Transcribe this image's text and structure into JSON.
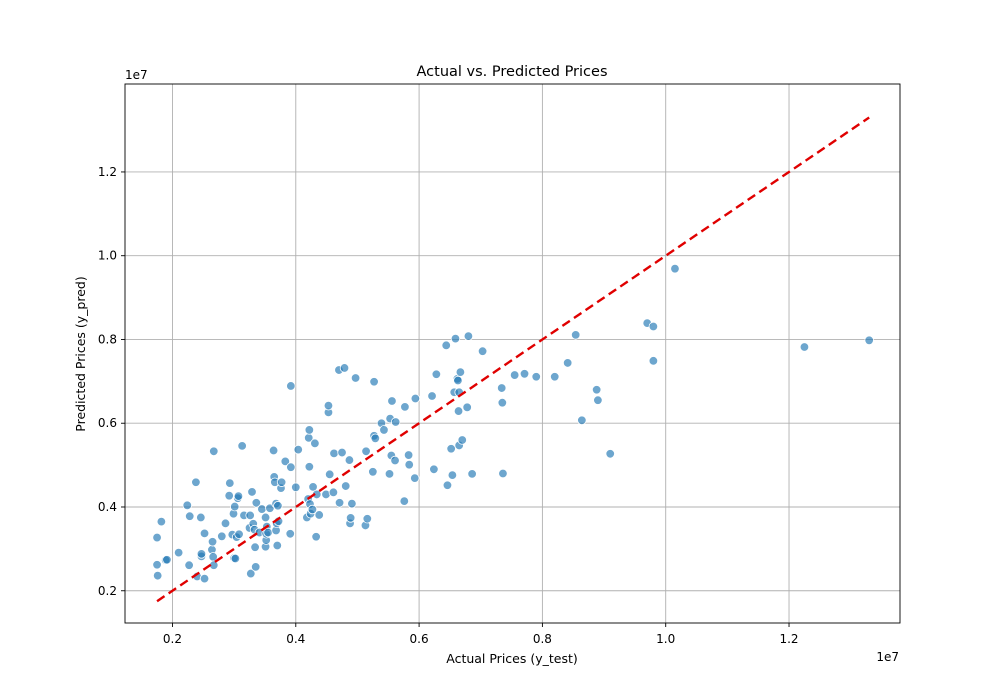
{
  "chart_data": {
    "type": "scatter",
    "title": "Actual vs. Predicted Prices",
    "xlabel": "Actual Prices (y_test)",
    "ylabel": "Predicted Prices (y_pred)",
    "x_offset_label": "1e7",
    "y_offset_label": "1e7",
    "xlim": [
      1.23,
      13.8
    ],
    "ylim": [
      1.23,
      14.1
    ],
    "x_ticks": [
      2,
      4,
      6,
      8,
      10,
      12
    ],
    "x_tick_labels": [
      "0.2",
      "0.4",
      "0.6",
      "0.8",
      "1.0",
      "1.2"
    ],
    "y_ticks": [
      2,
      4,
      6,
      8,
      10,
      12
    ],
    "y_tick_labels": [
      "0.2",
      "0.4",
      "0.6",
      "0.8",
      "1.0",
      "1.2"
    ],
    "grid": true,
    "point_color": "#1f77b4",
    "reference_line": {
      "x": [
        1.75,
        13.3
      ],
      "y": [
        1.75,
        13.3
      ],
      "color": "#e00000",
      "style": "dashed"
    },
    "points": [
      {
        "x": 1.75,
        "y": 3.27
      },
      {
        "x": 1.75,
        "y": 2.62
      },
      {
        "x": 1.76,
        "y": 2.36
      },
      {
        "x": 1.82,
        "y": 3.65
      },
      {
        "x": 1.89,
        "y": 2.73
      },
      {
        "x": 1.91,
        "y": 2.74
      },
      {
        "x": 2.1,
        "y": 2.91
      },
      {
        "x": 2.24,
        "y": 4.04
      },
      {
        "x": 2.27,
        "y": 2.61
      },
      {
        "x": 2.28,
        "y": 3.78
      },
      {
        "x": 2.38,
        "y": 4.59
      },
      {
        "x": 2.4,
        "y": 2.34
      },
      {
        "x": 2.46,
        "y": 3.75
      },
      {
        "x": 2.47,
        "y": 2.82
      },
      {
        "x": 2.47,
        "y": 2.88
      },
      {
        "x": 2.52,
        "y": 3.37
      },
      {
        "x": 2.52,
        "y": 2.29
      },
      {
        "x": 2.64,
        "y": 2.98
      },
      {
        "x": 2.65,
        "y": 3.17
      },
      {
        "x": 2.66,
        "y": 2.81
      },
      {
        "x": 2.67,
        "y": 2.61
      },
      {
        "x": 2.67,
        "y": 5.33
      },
      {
        "x": 2.8,
        "y": 3.3
      },
      {
        "x": 2.86,
        "y": 3.61
      },
      {
        "x": 2.92,
        "y": 4.27
      },
      {
        "x": 2.93,
        "y": 4.57
      },
      {
        "x": 2.97,
        "y": 3.34
      },
      {
        "x": 2.99,
        "y": 3.84
      },
      {
        "x": 3.0,
        "y": 2.78
      },
      {
        "x": 3.01,
        "y": 4.01
      },
      {
        "x": 3.02,
        "y": 2.77
      },
      {
        "x": 3.04,
        "y": 3.28
      },
      {
        "x": 3.06,
        "y": 4.21
      },
      {
        "x": 3.07,
        "y": 4.26
      },
      {
        "x": 3.08,
        "y": 3.35
      },
      {
        "x": 3.13,
        "y": 5.46
      },
      {
        "x": 3.16,
        "y": 3.8
      },
      {
        "x": 3.25,
        "y": 3.5
      },
      {
        "x": 3.26,
        "y": 3.8
      },
      {
        "x": 3.27,
        "y": 2.41
      },
      {
        "x": 3.29,
        "y": 4.36
      },
      {
        "x": 3.31,
        "y": 3.6
      },
      {
        "x": 3.33,
        "y": 3.46
      },
      {
        "x": 3.34,
        "y": 3.04
      },
      {
        "x": 3.35,
        "y": 2.57
      },
      {
        "x": 3.36,
        "y": 4.1
      },
      {
        "x": 3.41,
        "y": 3.39
      },
      {
        "x": 3.45,
        "y": 3.95
      },
      {
        "x": 3.51,
        "y": 3.75
      },
      {
        "x": 3.51,
        "y": 3.05
      },
      {
        "x": 3.52,
        "y": 3.21
      },
      {
        "x": 3.52,
        "y": 3.36
      },
      {
        "x": 3.53,
        "y": 3.53
      },
      {
        "x": 3.55,
        "y": 3.39
      },
      {
        "x": 3.58,
        "y": 3.97
      },
      {
        "x": 3.64,
        "y": 5.35
      },
      {
        "x": 3.65,
        "y": 4.72
      },
      {
        "x": 3.66,
        "y": 4.59
      },
      {
        "x": 3.68,
        "y": 3.44
      },
      {
        "x": 3.68,
        "y": 4.08
      },
      {
        "x": 3.69,
        "y": 3.61
      },
      {
        "x": 3.7,
        "y": 3.08
      },
      {
        "x": 3.71,
        "y": 4.03
      },
      {
        "x": 3.72,
        "y": 3.66
      },
      {
        "x": 3.76,
        "y": 4.45
      },
      {
        "x": 3.77,
        "y": 4.59
      },
      {
        "x": 3.83,
        "y": 5.09
      },
      {
        "x": 3.91,
        "y": 3.36
      },
      {
        "x": 3.92,
        "y": 4.95
      },
      {
        "x": 3.92,
        "y": 6.89
      },
      {
        "x": 4.0,
        "y": 4.47
      },
      {
        "x": 4.04,
        "y": 5.37
      },
      {
        "x": 4.18,
        "y": 3.75
      },
      {
        "x": 4.2,
        "y": 4.19
      },
      {
        "x": 4.21,
        "y": 5.65
      },
      {
        "x": 4.22,
        "y": 5.84
      },
      {
        "x": 4.22,
        "y": 4.96
      },
      {
        "x": 4.23,
        "y": 4.07
      },
      {
        "x": 4.24,
        "y": 3.84
      },
      {
        "x": 4.27,
        "y": 3.94
      },
      {
        "x": 4.28,
        "y": 4.48
      },
      {
        "x": 4.31,
        "y": 5.52
      },
      {
        "x": 4.33,
        "y": 3.29
      },
      {
        "x": 4.34,
        "y": 4.3
      },
      {
        "x": 4.38,
        "y": 3.81
      },
      {
        "x": 4.49,
        "y": 4.3
      },
      {
        "x": 4.53,
        "y": 6.26
      },
      {
        "x": 4.53,
        "y": 6.42
      },
      {
        "x": 4.55,
        "y": 4.78
      },
      {
        "x": 4.61,
        "y": 4.35
      },
      {
        "x": 4.62,
        "y": 5.28
      },
      {
        "x": 4.7,
        "y": 7.27
      },
      {
        "x": 4.71,
        "y": 4.1
      },
      {
        "x": 4.75,
        "y": 5.3
      },
      {
        "x": 4.79,
        "y": 7.32
      },
      {
        "x": 4.81,
        "y": 4.5
      },
      {
        "x": 4.87,
        "y": 5.12
      },
      {
        "x": 4.88,
        "y": 3.61
      },
      {
        "x": 4.89,
        "y": 3.74
      },
      {
        "x": 4.91,
        "y": 4.08
      },
      {
        "x": 4.97,
        "y": 7.08
      },
      {
        "x": 5.13,
        "y": 3.56
      },
      {
        "x": 5.14,
        "y": 5.33
      },
      {
        "x": 5.16,
        "y": 3.72
      },
      {
        "x": 5.25,
        "y": 4.84
      },
      {
        "x": 5.27,
        "y": 5.7
      },
      {
        "x": 5.27,
        "y": 6.99
      },
      {
        "x": 5.29,
        "y": 5.64
      },
      {
        "x": 5.39,
        "y": 6.0
      },
      {
        "x": 5.43,
        "y": 5.84
      },
      {
        "x": 5.52,
        "y": 4.79
      },
      {
        "x": 5.53,
        "y": 6.11
      },
      {
        "x": 5.55,
        "y": 5.23
      },
      {
        "x": 5.56,
        "y": 6.53
      },
      {
        "x": 5.61,
        "y": 5.11
      },
      {
        "x": 5.62,
        "y": 6.03
      },
      {
        "x": 5.76,
        "y": 4.14
      },
      {
        "x": 5.77,
        "y": 6.39
      },
      {
        "x": 5.83,
        "y": 5.24
      },
      {
        "x": 5.84,
        "y": 5.01
      },
      {
        "x": 5.93,
        "y": 4.69
      },
      {
        "x": 5.94,
        "y": 6.59
      },
      {
        "x": 6.21,
        "y": 6.65
      },
      {
        "x": 6.24,
        "y": 4.9
      },
      {
        "x": 6.28,
        "y": 7.17
      },
      {
        "x": 6.44,
        "y": 7.86
      },
      {
        "x": 6.46,
        "y": 4.52
      },
      {
        "x": 6.52,
        "y": 5.39
      },
      {
        "x": 6.54,
        "y": 4.76
      },
      {
        "x": 6.57,
        "y": 6.74
      },
      {
        "x": 6.59,
        "y": 8.02
      },
      {
        "x": 6.62,
        "y": 7.06
      },
      {
        "x": 6.63,
        "y": 7.02
      },
      {
        "x": 6.64,
        "y": 6.29
      },
      {
        "x": 6.65,
        "y": 5.47
      },
      {
        "x": 6.65,
        "y": 6.74
      },
      {
        "x": 6.67,
        "y": 7.22
      },
      {
        "x": 6.7,
        "y": 5.6
      },
      {
        "x": 6.78,
        "y": 6.38
      },
      {
        "x": 6.8,
        "y": 8.08
      },
      {
        "x": 6.86,
        "y": 4.79
      },
      {
        "x": 7.03,
        "y": 7.72
      },
      {
        "x": 7.34,
        "y": 6.84
      },
      {
        "x": 7.35,
        "y": 6.49
      },
      {
        "x": 7.36,
        "y": 4.8
      },
      {
        "x": 7.55,
        "y": 7.15
      },
      {
        "x": 7.71,
        "y": 7.18
      },
      {
        "x": 7.9,
        "y": 7.11
      },
      {
        "x": 8.2,
        "y": 7.11
      },
      {
        "x": 8.41,
        "y": 7.44
      },
      {
        "x": 8.54,
        "y": 8.11
      },
      {
        "x": 8.64,
        "y": 6.07
      },
      {
        "x": 8.88,
        "y": 6.8
      },
      {
        "x": 8.9,
        "y": 6.55
      },
      {
        "x": 9.1,
        "y": 5.27
      },
      {
        "x": 9.7,
        "y": 8.39
      },
      {
        "x": 9.8,
        "y": 7.49
      },
      {
        "x": 9.8,
        "y": 8.31
      },
      {
        "x": 10.15,
        "y": 9.69
      },
      {
        "x": 12.25,
        "y": 7.82
      },
      {
        "x": 13.3,
        "y": 7.98
      }
    ]
  }
}
